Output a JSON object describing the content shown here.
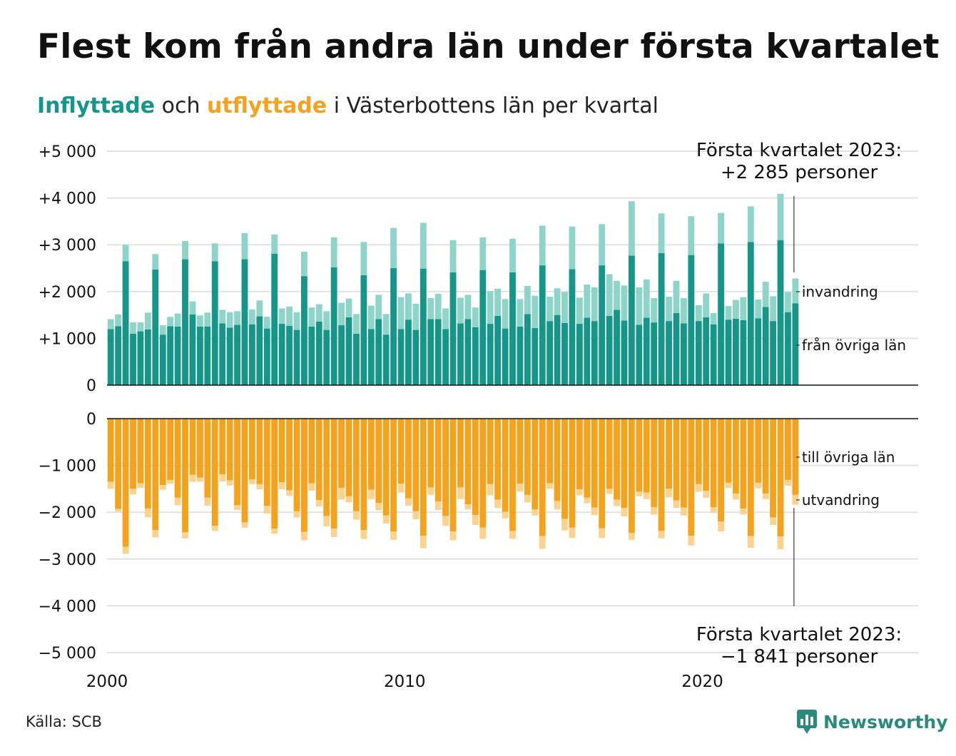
{
  "title": "Flest kom från andra län under första kvartalet",
  "subtitle": {
    "part1": "Inflyttade",
    "part2": " och ",
    "part3": "utflyttade",
    "part4": " i Västerbottens län per kvartal"
  },
  "source": "Källa: SCB",
  "logo": "Newsworthy",
  "colors": {
    "in_dark": "#169688",
    "in_light": "#8fd4c9",
    "out_dark": "#f5a21c",
    "out_light": "#fbd38e",
    "grid": "#e2e2e2",
    "axis": "#111111"
  },
  "chart_data": {
    "type": "bar",
    "stacked": true,
    "xlim": [
      2000,
      2027.25
    ],
    "ylim": [
      -5000,
      5000
    ],
    "x_ticks": [
      2000,
      2010,
      2020
    ],
    "y_ticks_top": [
      "+5 000",
      "+4 000",
      "+3 000",
      "+2 000",
      "+1 000",
      "0"
    ],
    "y_ticks_bottom": [
      "0",
      "−1 000",
      "−2 000",
      "−3 000",
      "−4 000",
      "−5 000"
    ],
    "annotation_top": [
      "Första kvartalet 2023:",
      "+2 285 personer"
    ],
    "annotation_bottom": [
      "Första kvartalet 2023:",
      "−1 841 personer"
    ],
    "series_labels_top": [
      "invandring",
      "från övriga län"
    ],
    "series_labels_bottom": [
      "till övriga län",
      "utvandring"
    ],
    "quarters": [
      "2000 Q1",
      "2000 Q2",
      "2000 Q3",
      "2000 Q4",
      "2001 Q1",
      "2001 Q2",
      "2001 Q3",
      "2001 Q4",
      "2002 Q1",
      "2002 Q2",
      "2002 Q3",
      "2002 Q4",
      "2003 Q1",
      "2003 Q2",
      "2003 Q3",
      "2003 Q4",
      "2004 Q1",
      "2004 Q2",
      "2004 Q3",
      "2004 Q4",
      "2005 Q1",
      "2005 Q2",
      "2005 Q3",
      "2005 Q4",
      "2006 Q1",
      "2006 Q2",
      "2006 Q3",
      "2006 Q4",
      "2007 Q1",
      "2007 Q2",
      "2007 Q3",
      "2007 Q4",
      "2008 Q1",
      "2008 Q2",
      "2008 Q3",
      "2008 Q4",
      "2009 Q1",
      "2009 Q2",
      "2009 Q3",
      "2009 Q4",
      "2010 Q1",
      "2010 Q2",
      "2010 Q3",
      "2010 Q4",
      "2011 Q1",
      "2011 Q2",
      "2011 Q3",
      "2011 Q4",
      "2012 Q1",
      "2012 Q2",
      "2012 Q3",
      "2012 Q4",
      "2013 Q1",
      "2013 Q2",
      "2013 Q3",
      "2013 Q4",
      "2014 Q1",
      "2014 Q2",
      "2014 Q3",
      "2014 Q4",
      "2015 Q1",
      "2015 Q2",
      "2015 Q3",
      "2015 Q4",
      "2016 Q1",
      "2016 Q2",
      "2016 Q3",
      "2016 Q4",
      "2017 Q1",
      "2017 Q2",
      "2017 Q3",
      "2017 Q4",
      "2018 Q1",
      "2018 Q2",
      "2018 Q3",
      "2018 Q4",
      "2019 Q1",
      "2019 Q2",
      "2019 Q3",
      "2019 Q4",
      "2020 Q1",
      "2020 Q2",
      "2020 Q3",
      "2020 Q4",
      "2021 Q1",
      "2021 Q2",
      "2021 Q3",
      "2021 Q4",
      "2022 Q1",
      "2022 Q2",
      "2022 Q3",
      "2022 Q4",
      "2023 Q1"
    ],
    "series": [
      {
        "name": "från övriga län",
        "values": [
          1200,
          1260,
          2650,
          1100,
          1150,
          1190,
          2470,
          1080,
          1260,
          1250,
          2690,
          1510,
          1250,
          1250,
          2650,
          1320,
          1230,
          1290,
          2690,
          1300,
          1470,
          1210,
          2810,
          1310,
          1270,
          1180,
          2330,
          1250,
          1360,
          1180,
          2520,
          1280,
          1450,
          1100,
          2350,
          1200,
          1410,
          1080,
          2500,
          1200,
          1400,
          1180,
          2490,
          1410,
          1410,
          1200,
          2410,
          1320,
          1410,
          1240,
          2460,
          1310,
          1480,
          1210,
          2410,
          1250,
          1520,
          1220,
          2560,
          1370,
          1500,
          1330,
          2480,
          1310,
          1440,
          1370,
          2560,
          1480,
          1610,
          1380,
          2770,
          1290,
          1440,
          1340,
          2820,
          1370,
          1540,
          1320,
          2780,
          1370,
          1450,
          1300,
          3030,
          1400,
          1420,
          1390,
          3060,
          1430,
          1670,
          1370,
          3100,
          1560,
          1750
        ]
      },
      {
        "name": "invandring",
        "values": [
          210,
          250,
          350,
          240,
          190,
          360,
          330,
          200,
          200,
          280,
          390,
          280,
          240,
          300,
          380,
          290,
          330,
          290,
          560,
          320,
          340,
          250,
          410,
          330,
          410,
          380,
          520,
          410,
          370,
          400,
          640,
          480,
          400,
          420,
          710,
          500,
          520,
          440,
          860,
          680,
          560,
          560,
          980,
          450,
          540,
          440,
          690,
          550,
          520,
          420,
          700,
          700,
          580,
          630,
          720,
          590,
          600,
          690,
          850,
          520,
          570,
          660,
          910,
          560,
          710,
          720,
          880,
          890,
          620,
          750,
          1160,
          800,
          820,
          520,
          850,
          520,
          690,
          540,
          830,
          340,
          510,
          240,
          650,
          290,
          400,
          490,
          760,
          400,
          540,
          530,
          990,
          430,
          530
        ]
      },
      {
        "name": "till övriga län",
        "values": [
          -1350,
          -1930,
          -2740,
          -1500,
          -1380,
          -1920,
          -2380,
          -1420,
          -1310,
          -1690,
          -2430,
          -1200,
          -1260,
          -1690,
          -2290,
          -1190,
          -1320,
          -1850,
          -2220,
          -1300,
          -1400,
          -1860,
          -2350,
          -1360,
          -1530,
          -1980,
          -2420,
          -1380,
          -1740,
          -2080,
          -2350,
          -1480,
          -1660,
          -1980,
          -2380,
          -1520,
          -1800,
          -2070,
          -2410,
          -1390,
          -1700,
          -1980,
          -2500,
          -1470,
          -1770,
          -2080,
          -2410,
          -1470,
          -1830,
          -2060,
          -2330,
          -1400,
          -1730,
          -1990,
          -2400,
          -1390,
          -1630,
          -1940,
          -2510,
          -1380,
          -1760,
          -2140,
          -2330,
          -1510,
          -1690,
          -1900,
          -2340,
          -1500,
          -1730,
          -1910,
          -2440,
          -1560,
          -1580,
          -1890,
          -2400,
          -1500,
          -1750,
          -1900,
          -2500,
          -1400,
          -1540,
          -1890,
          -2200,
          -1370,
          -1600,
          -1920,
          -2510,
          -1370,
          -1600,
          -2110,
          -2520,
          -1310,
          -1630
        ]
      },
      {
        "name": "utvandring",
        "values": [
          -150,
          -60,
          -150,
          -120,
          -100,
          -190,
          -160,
          -100,
          -80,
          -160,
          -130,
          -150,
          -90,
          -170,
          -110,
          -150,
          -110,
          -100,
          -110,
          -100,
          -110,
          -170,
          -110,
          -150,
          -120,
          -130,
          -180,
          -160,
          -140,
          -220,
          -180,
          -250,
          -130,
          -180,
          -190,
          -200,
          -160,
          -170,
          -180,
          -190,
          -160,
          -170,
          -270,
          -160,
          -180,
          -210,
          -190,
          -250,
          -110,
          -210,
          -240,
          -240,
          -180,
          -140,
          -170,
          -170,
          -160,
          -130,
          -270,
          -120,
          -180,
          -250,
          -220,
          -130,
          -120,
          -160,
          -210,
          -110,
          -140,
          -180,
          -150,
          -100,
          -140,
          -160,
          -160,
          -180,
          -160,
          -170,
          -210,
          -160,
          -150,
          -120,
          -210,
          -110,
          -130,
          -130,
          -250,
          -120,
          -120,
          -160,
          -270,
          -120,
          -210
        ]
      }
    ]
  }
}
